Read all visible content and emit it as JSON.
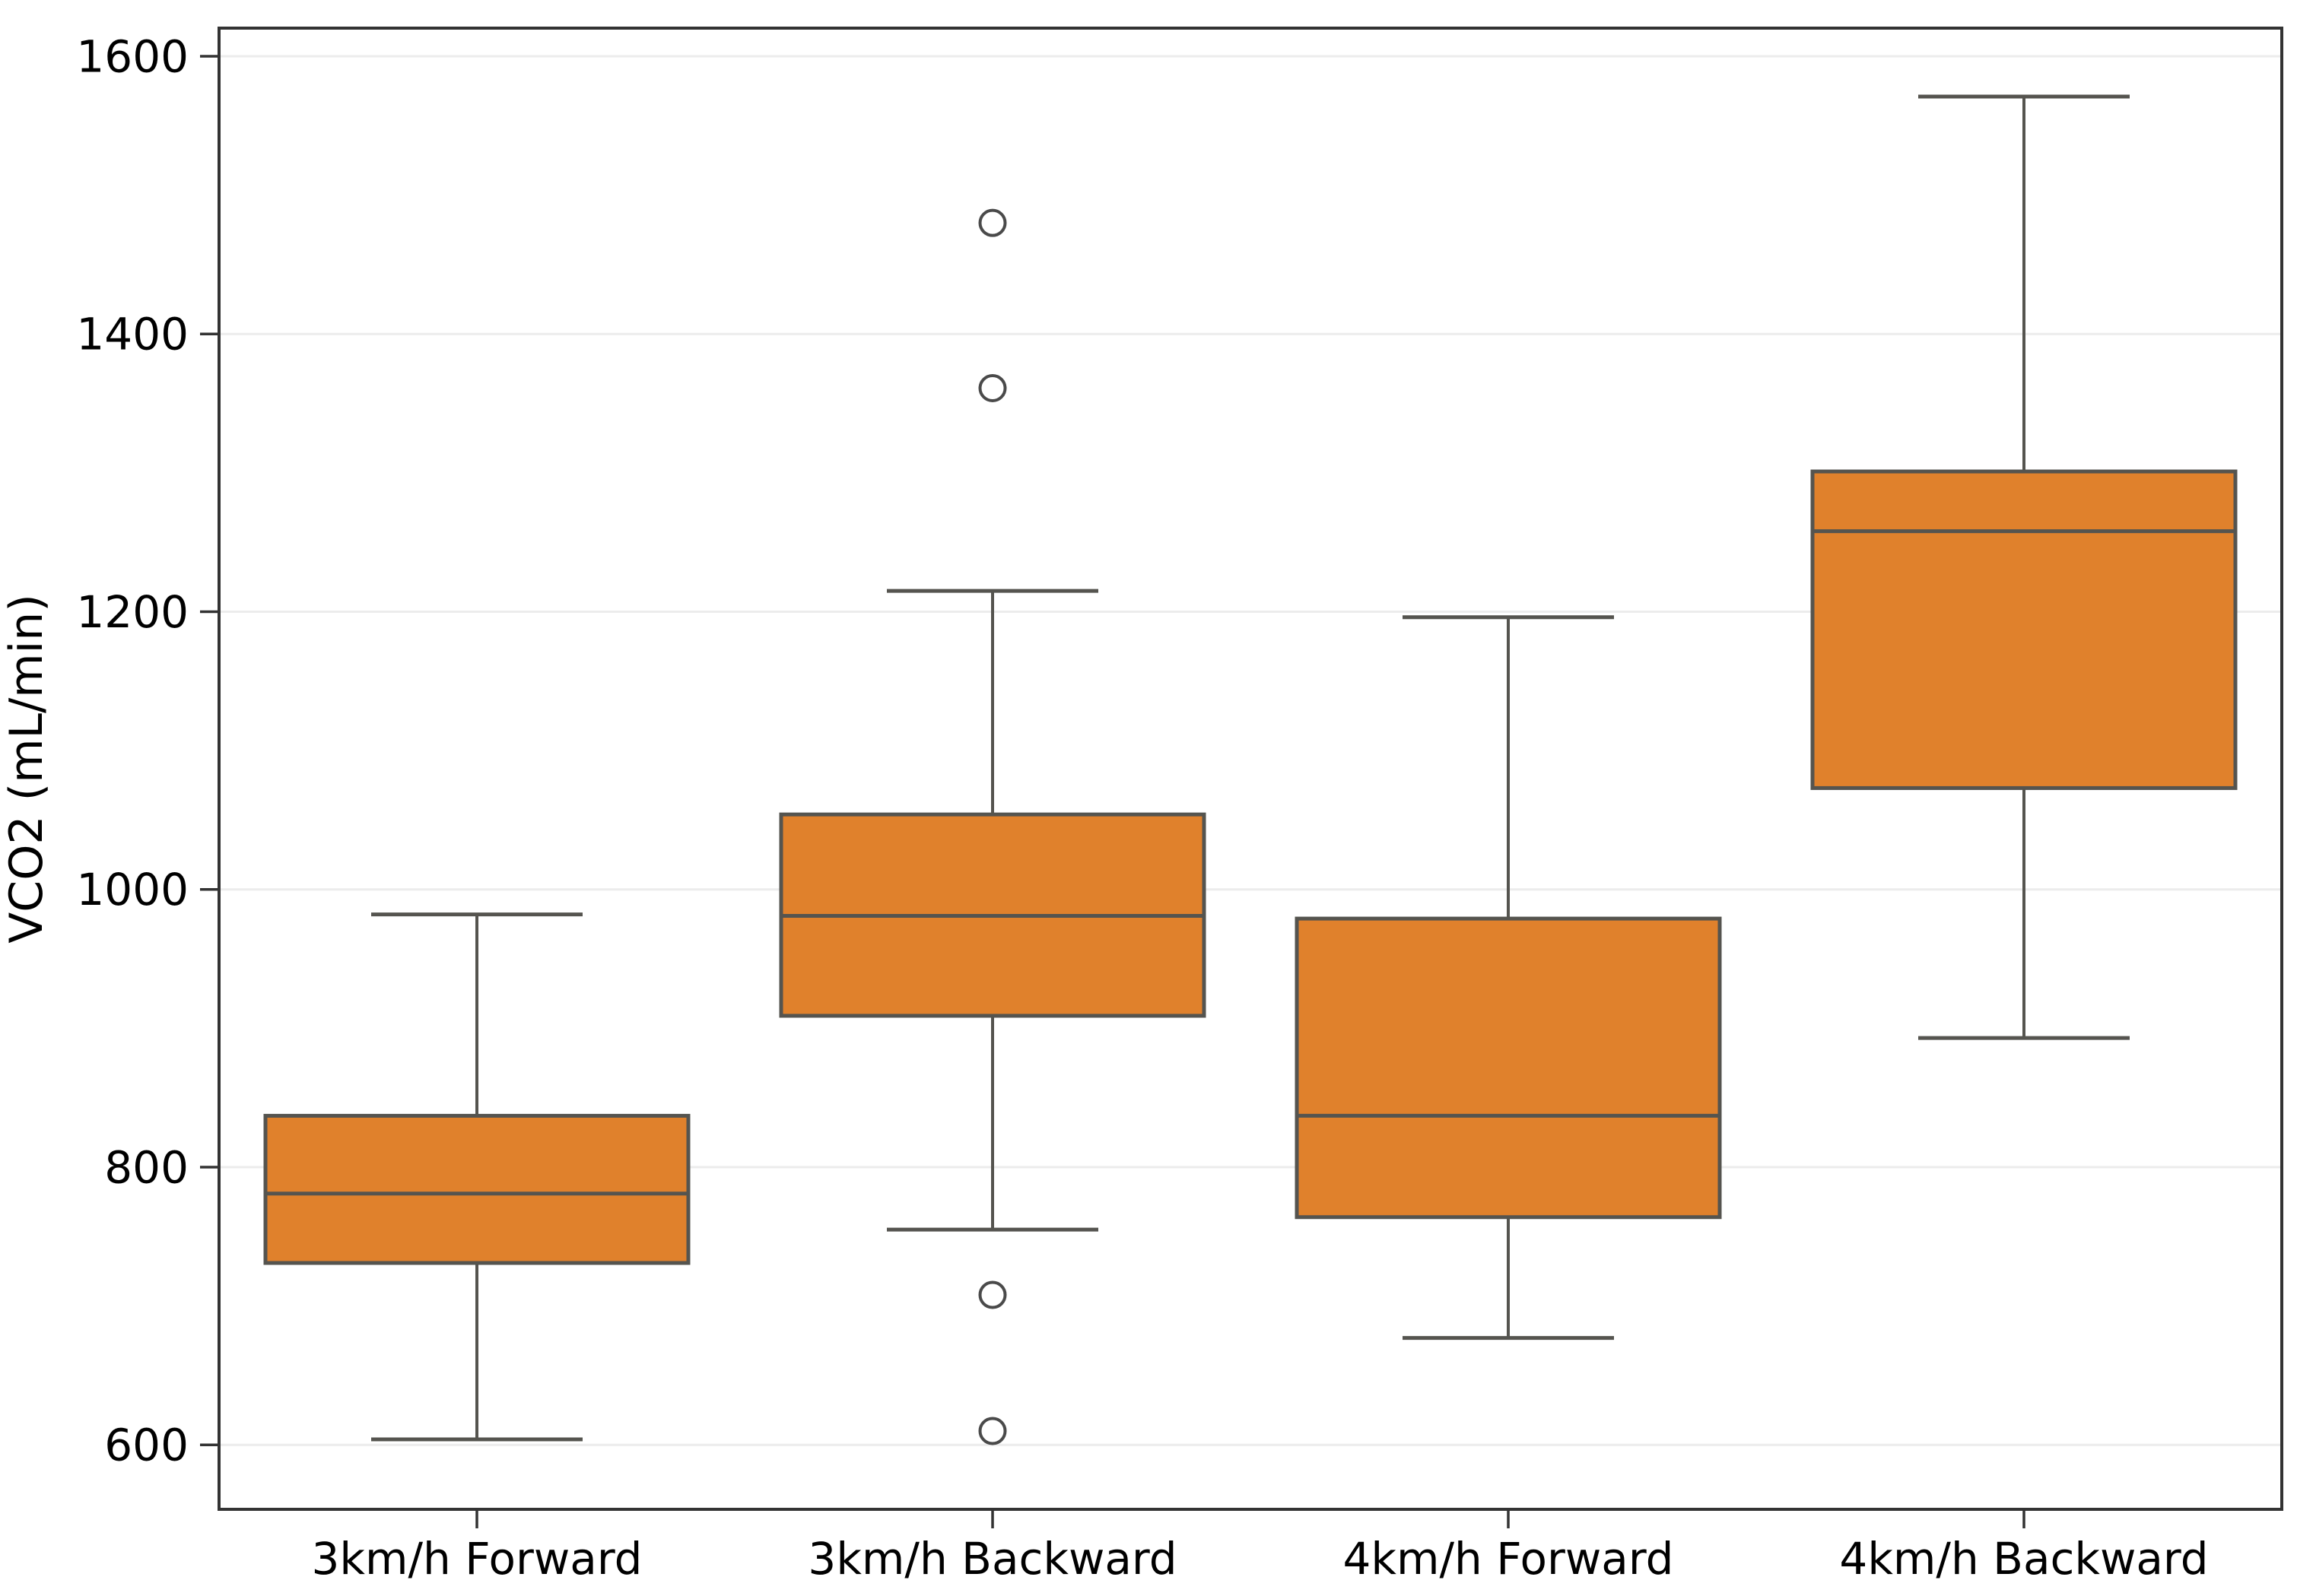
{
  "chart_data": {
    "type": "boxplot",
    "title": "",
    "xlabel": "",
    "ylabel": "VCO2 (mL/min)",
    "ylim": [
      553,
      1620
    ],
    "yticks": [
      600,
      800,
      1000,
      1200,
      1400,
      1600
    ],
    "ytick_labels": [
      "600",
      "800",
      "1000",
      "1200",
      "1400",
      "1600"
    ],
    "grid": "horizontal-only",
    "legend": "none",
    "categories": [
      "3km/h Forward",
      "3km/h Backward",
      "4km/h Forward",
      "4km/h Backward"
    ],
    "boxes": [
      {
        "label": "3km/h Forward",
        "whislo": 604,
        "q1": 731,
        "med": 781,
        "q3": 837,
        "whishi": 982,
        "outliers": []
      },
      {
        "label": "3km/h Backward",
        "whislo": 755,
        "q1": 909,
        "med": 981,
        "q3": 1054,
        "whishi": 1215,
        "outliers": [
          1480,
          1361,
          708,
          610
        ]
      },
      {
        "label": "4km/h Forward",
        "whislo": 677,
        "q1": 764,
        "med": 837,
        "q3": 979,
        "whishi": 1196,
        "outliers": []
      },
      {
        "label": "4km/h Backward",
        "whislo": 893,
        "q1": 1073,
        "med": 1258,
        "q3": 1301,
        "whishi": 1571,
        "outliers": []
      }
    ],
    "colors": {
      "box_fill": "#e0812c",
      "box_edge": "#55544f",
      "whisker": "#55544f",
      "median": "#55544f",
      "outlier_stroke": "#4a4a4a",
      "outlier_fill": "#ffffff",
      "gridline": "#ececec",
      "spine": "#333333",
      "tick": "#333333",
      "text": "#000000",
      "background": "#ffffff"
    }
  }
}
